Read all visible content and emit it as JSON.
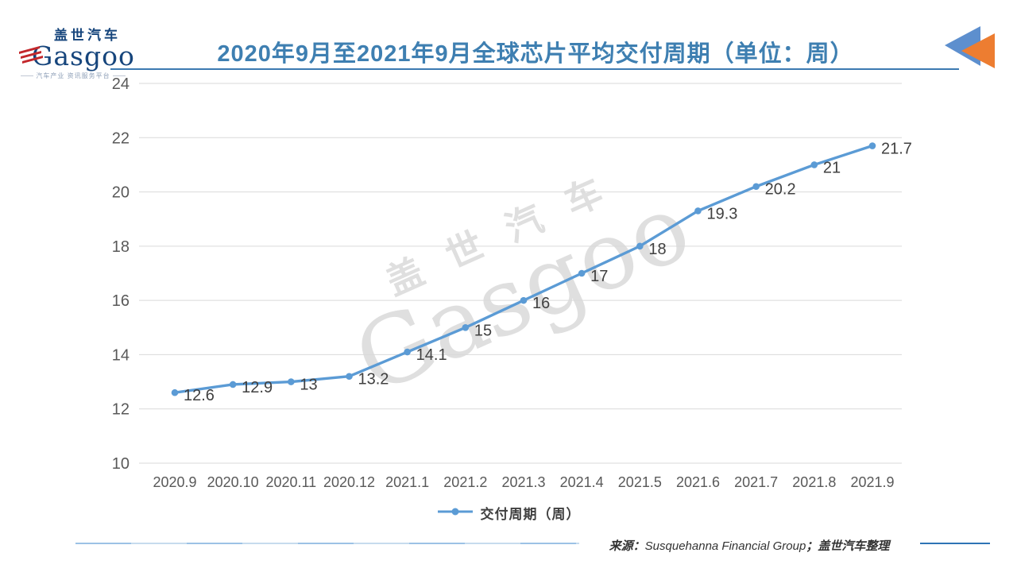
{
  "logo": {
    "cn": "盖世汽车",
    "en": "Gasgoo",
    "tagline": "汽车产业 资讯服务平台"
  },
  "header": {
    "title": "2020年9月至2021年9月全球芯片平均交付周期（单位：周）",
    "title_color": "#3e7fb1"
  },
  "decoration": {
    "triangle_blue": "#5d8fce",
    "triangle_orange": "#ed7d31"
  },
  "watermark": {
    "line1": "盖世汽车",
    "line2": "Gasgoo"
  },
  "chart_data": {
    "type": "line",
    "title": "2020年9月至2021年9月全球芯片平均交付周期（单位：周）",
    "categories": [
      "2020.9",
      "2020.10",
      "2020.11",
      "2020.12",
      "2021.1",
      "2021.2",
      "2021.3",
      "2021.4",
      "2021.5",
      "2021.6",
      "2021.7",
      "2021.8",
      "2021.9"
    ],
    "series": [
      {
        "name": "交付周期（周）",
        "values": [
          12.6,
          12.9,
          13,
          13.2,
          14.1,
          15,
          16,
          17,
          18,
          19.3,
          20.2,
          21,
          21.7
        ]
      }
    ],
    "ylim": [
      10,
      24
    ],
    "yticks": [
      10,
      12,
      14,
      16,
      18,
      20,
      22,
      24
    ],
    "grid": "horizontal",
    "legend_position": "bottom",
    "data_labels": true,
    "colors": {
      "line": "#5b9bd5",
      "marker": "#5b9bd5",
      "data_label": "#404040",
      "axis_label": "#595959",
      "gridline": "#d9d9d9"
    }
  },
  "footer": {
    "prefix": "来源：",
    "source": "Susquehanna Financial Group",
    "separator": "；",
    "suffix": "盖世汽车整理"
  }
}
